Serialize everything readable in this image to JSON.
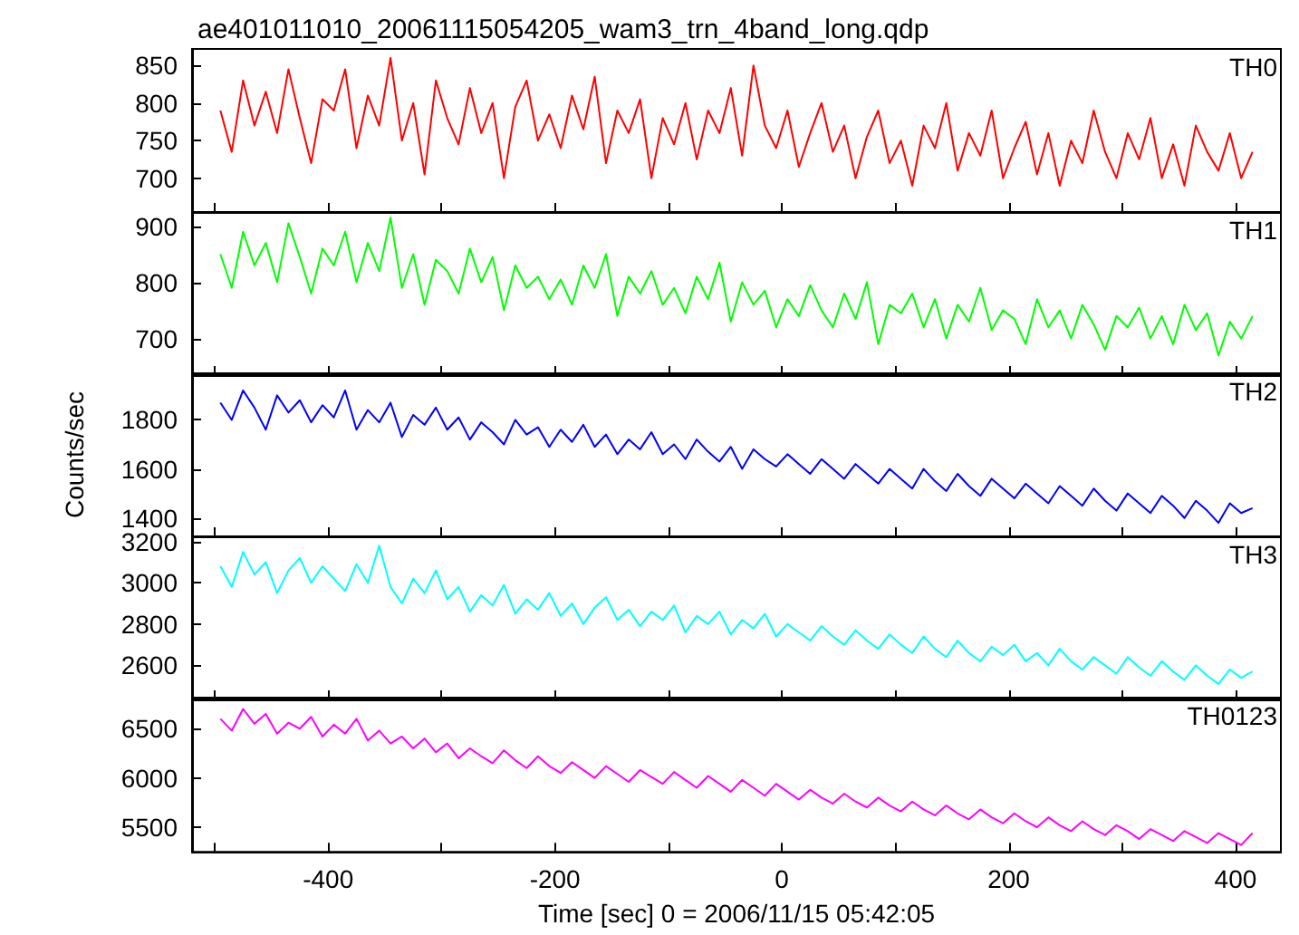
{
  "chart_data": [
    {
      "type": "line",
      "title": "ae401011010_20061115054205_wam3_trn_4band_long.qdp",
      "tick_labels": "y",
      "x": [
        -495,
        -485,
        -475,
        -465,
        -455,
        -445,
        -435,
        -425,
        -415,
        -405,
        -395,
        -385,
        -375,
        -365,
        -355,
        -345,
        -335,
        -325,
        -315,
        -305,
        -295,
        -285,
        -275,
        -265,
        -255,
        -245,
        -235,
        -225,
        -215,
        -205,
        -195,
        -185,
        -175,
        -165,
        -155,
        -145,
        -135,
        -125,
        -115,
        -105,
        -95,
        -85,
        -75,
        -65,
        -55,
        -45,
        -35,
        -25,
        -15,
        -5,
        5,
        15,
        25,
        35,
        45,
        55,
        65,
        75,
        85,
        95,
        105,
        115,
        125,
        135,
        145,
        155,
        165,
        175,
        185,
        195,
        205,
        215,
        225,
        235,
        245,
        255,
        265,
        275,
        285,
        295,
        305,
        315,
        325,
        335,
        345,
        355,
        365,
        375,
        385,
        395,
        405,
        415
      ],
      "series": [
        {
          "name": "TH0",
          "color": "#ff0000",
          "values": [
            790,
            735,
            830,
            770,
            815,
            760,
            845,
            780,
            720,
            805,
            790,
            845,
            740,
            810,
            770,
            860,
            750,
            800,
            705,
            830,
            780,
            745,
            820,
            760,
            800,
            700,
            795,
            830,
            750,
            785,
            740,
            810,
            765,
            835,
            720,
            790,
            760,
            805,
            700,
            780,
            745,
            800,
            725,
            790,
            760,
            820,
            730,
            850,
            770,
            740,
            790,
            715,
            760,
            800,
            735,
            770,
            700,
            755,
            790,
            720,
            750,
            690,
            770,
            740,
            800,
            710,
            760,
            730,
            790,
            700,
            740,
            775,
            705,
            760,
            690,
            750,
            720,
            790,
            735,
            700,
            760,
            725,
            780,
            700,
            745,
            690,
            770,
            735,
            710,
            760,
            700,
            735
          ]
        }
      ],
      "xlim": [
        -520,
        440
      ],
      "xticks": [
        {
          "value": -500,
          "label": null
        },
        -400,
        {
          "value": -300,
          "label": null
        },
        -200,
        {
          "value": -100,
          "label": null
        },
        0,
        {
          "value": 100,
          "label": null
        },
        200,
        {
          "value": 300,
          "label": null
        },
        400
      ],
      "ylim": [
        655,
        872
      ],
      "yticks": [
        700,
        750,
        800,
        850
      ]
    },
    {
      "type": "line",
      "tick_labels": "y",
      "x": [
        -495,
        -485,
        -475,
        -465,
        -455,
        -445,
        -435,
        -425,
        -415,
        -405,
        -395,
        -385,
        -375,
        -365,
        -355,
        -345,
        -335,
        -325,
        -315,
        -305,
        -295,
        -285,
        -275,
        -265,
        -255,
        -245,
        -235,
        -225,
        -215,
        -205,
        -195,
        -185,
        -175,
        -165,
        -155,
        -145,
        -135,
        -125,
        -115,
        -105,
        -95,
        -85,
        -75,
        -65,
        -55,
        -45,
        -35,
        -25,
        -15,
        -5,
        5,
        15,
        25,
        35,
        45,
        55,
        65,
        75,
        85,
        95,
        105,
        115,
        125,
        135,
        145,
        155,
        165,
        175,
        185,
        195,
        205,
        215,
        225,
        235,
        245,
        255,
        265,
        275,
        285,
        295,
        305,
        315,
        325,
        335,
        345,
        355,
        365,
        375,
        385,
        395,
        405,
        415
      ],
      "series": [
        {
          "name": "TH1",
          "color": "#00ff00",
          "values": [
            850,
            790,
            890,
            830,
            870,
            800,
            905,
            845,
            780,
            860,
            830,
            890,
            800,
            870,
            820,
            915,
            790,
            850,
            760,
            840,
            820,
            780,
            860,
            800,
            845,
            750,
            830,
            790,
            810,
            770,
            805,
            760,
            830,
            790,
            850,
            740,
            810,
            780,
            820,
            760,
            790,
            745,
            810,
            770,
            835,
            730,
            800,
            760,
            785,
            720,
            770,
            740,
            795,
            750,
            720,
            780,
            735,
            800,
            690,
            760,
            745,
            780,
            720,
            770,
            700,
            760,
            730,
            790,
            715,
            750,
            735,
            690,
            770,
            720,
            750,
            700,
            760,
            725,
            680,
            740,
            720,
            755,
            700,
            740,
            690,
            760,
            715,
            745,
            670,
            730,
            700,
            740
          ]
        }
      ],
      "xlim": [
        -520,
        440
      ],
      "xticks": [
        {
          "value": -500,
          "label": null
        },
        -400,
        {
          "value": -300,
          "label": null
        },
        -200,
        {
          "value": -100,
          "label": null
        },
        0,
        {
          "value": 100,
          "label": null
        },
        200,
        {
          "value": 300,
          "label": null
        },
        400
      ],
      "ylim": [
        635,
        925
      ],
      "yticks": [
        700,
        800,
        900
      ]
    },
    {
      "type": "line",
      "tick_labels": "y",
      "ylabel": "Counts/sec",
      "x": [
        -495,
        -485,
        -475,
        -465,
        -455,
        -445,
        -435,
        -425,
        -415,
        -405,
        -395,
        -385,
        -375,
        -365,
        -355,
        -345,
        -335,
        -325,
        -315,
        -305,
        -295,
        -285,
        -275,
        -265,
        -255,
        -245,
        -235,
        -225,
        -215,
        -205,
        -195,
        -185,
        -175,
        -165,
        -155,
        -145,
        -135,
        -125,
        -115,
        -105,
        -95,
        -85,
        -75,
        -65,
        -55,
        -45,
        -35,
        -25,
        -15,
        -5,
        5,
        15,
        25,
        35,
        45,
        55,
        65,
        75,
        85,
        95,
        105,
        115,
        125,
        135,
        145,
        155,
        165,
        175,
        185,
        195,
        205,
        215,
        225,
        235,
        245,
        255,
        265,
        275,
        285,
        295,
        305,
        315,
        325,
        335,
        345,
        355,
        365,
        375,
        385,
        395,
        405,
        415
      ],
      "series": [
        {
          "name": "TH2",
          "color": "#0000ff",
          "values": [
            1870,
            1800,
            1920,
            1850,
            1760,
            1900,
            1830,
            1880,
            1790,
            1860,
            1810,
            1920,
            1760,
            1840,
            1790,
            1870,
            1730,
            1820,
            1780,
            1850,
            1760,
            1810,
            1720,
            1790,
            1750,
            1700,
            1800,
            1740,
            1770,
            1690,
            1760,
            1710,
            1780,
            1690,
            1740,
            1660,
            1720,
            1680,
            1750,
            1660,
            1700,
            1640,
            1720,
            1670,
            1630,
            1690,
            1600,
            1680,
            1640,
            1610,
            1660,
            1620,
            1580,
            1640,
            1600,
            1560,
            1620,
            1580,
            1540,
            1600,
            1560,
            1520,
            1600,
            1550,
            1510,
            1580,
            1530,
            1490,
            1560,
            1520,
            1480,
            1540,
            1500,
            1460,
            1530,
            1490,
            1450,
            1520,
            1470,
            1430,
            1500,
            1460,
            1420,
            1490,
            1450,
            1400,
            1470,
            1430,
            1380,
            1460,
            1420,
            1440
          ]
        }
      ],
      "xlim": [
        -520,
        440
      ],
      "xticks": [
        {
          "value": -500,
          "label": null
        },
        -400,
        {
          "value": -300,
          "label": null
        },
        -200,
        {
          "value": -100,
          "label": null
        },
        0,
        {
          "value": 100,
          "label": null
        },
        200,
        {
          "value": 300,
          "label": null
        },
        400
      ],
      "ylim": [
        1325,
        1990
      ],
      "yticks": [
        1400,
        1600,
        1800
      ]
    },
    {
      "type": "line",
      "tick_labels": "y",
      "x": [
        -495,
        -485,
        -475,
        -465,
        -455,
        -445,
        -435,
        -425,
        -415,
        -405,
        -395,
        -385,
        -375,
        -365,
        -355,
        -345,
        -335,
        -325,
        -315,
        -305,
        -295,
        -285,
        -275,
        -265,
        -255,
        -245,
        -235,
        -225,
        -215,
        -205,
        -195,
        -185,
        -175,
        -165,
        -155,
        -145,
        -135,
        -125,
        -115,
        -105,
        -95,
        -85,
        -75,
        -65,
        -55,
        -45,
        -35,
        -25,
        -15,
        -5,
        5,
        15,
        25,
        35,
        45,
        55,
        65,
        75,
        85,
        95,
        105,
        115,
        125,
        135,
        145,
        155,
        165,
        175,
        185,
        195,
        205,
        215,
        225,
        235,
        245,
        255,
        265,
        275,
        285,
        295,
        305,
        315,
        325,
        335,
        345,
        355,
        365,
        375,
        385,
        395,
        405,
        415
      ],
      "series": [
        {
          "name": "TH3",
          "color": "#00ffff",
          "values": [
            3080,
            2980,
            3150,
            3040,
            3100,
            2950,
            3060,
            3120,
            3000,
            3080,
            3020,
            2960,
            3090,
            3000,
            3180,
            2980,
            2900,
            3020,
            2950,
            3060,
            2920,
            2980,
            2860,
            2940,
            2890,
            2990,
            2850,
            2920,
            2870,
            2950,
            2840,
            2900,
            2800,
            2880,
            2930,
            2820,
            2870,
            2790,
            2860,
            2820,
            2890,
            2760,
            2840,
            2800,
            2860,
            2750,
            2820,
            2780,
            2850,
            2740,
            2800,
            2760,
            2720,
            2790,
            2740,
            2700,
            2770,
            2720,
            2680,
            2750,
            2700,
            2660,
            2740,
            2680,
            2640,
            2720,
            2660,
            2620,
            2690,
            2650,
            2700,
            2620,
            2660,
            2600,
            2680,
            2620,
            2580,
            2640,
            2600,
            2560,
            2640,
            2590,
            2550,
            2620,
            2570,
            2530,
            2600,
            2550,
            2510,
            2580,
            2540,
            2570
          ]
        }
      ],
      "xlim": [
        -520,
        440
      ],
      "xticks": [
        {
          "value": -500,
          "label": null
        },
        -400,
        {
          "value": -300,
          "label": null
        },
        -200,
        {
          "value": -100,
          "label": null
        },
        0,
        {
          "value": 100,
          "label": null
        },
        200,
        {
          "value": 300,
          "label": null
        },
        400
      ],
      "ylim": [
        2435,
        3225
      ],
      "yticks": [
        2600,
        2800,
        3000,
        3200
      ]
    },
    {
      "type": "line",
      "xlabel": "Time [sec] 0 = 2006/11/15 05:42:05",
      "x": [
        -495,
        -485,
        -475,
        -465,
        -455,
        -445,
        -435,
        -425,
        -415,
        -405,
        -395,
        -385,
        -375,
        -365,
        -355,
        -345,
        -335,
        -325,
        -315,
        -305,
        -295,
        -285,
        -275,
        -265,
        -255,
        -245,
        -235,
        -225,
        -215,
        -205,
        -195,
        -185,
        -175,
        -165,
        -155,
        -145,
        -135,
        -125,
        -115,
        -105,
        -95,
        -85,
        -75,
        -65,
        -55,
        -45,
        -35,
        -25,
        -15,
        -5,
        5,
        15,
        25,
        35,
        45,
        55,
        65,
        75,
        85,
        95,
        105,
        115,
        125,
        135,
        145,
        155,
        165,
        175,
        185,
        195,
        205,
        215,
        225,
        235,
        245,
        255,
        265,
        275,
        285,
        295,
        305,
        315,
        325,
        335,
        345,
        355,
        365,
        375,
        385,
        395,
        405,
        415
      ],
      "series": [
        {
          "name": "TH0123",
          "color": "#ff00ff",
          "values": [
            6600,
            6480,
            6700,
            6550,
            6650,
            6450,
            6560,
            6500,
            6620,
            6420,
            6540,
            6450,
            6600,
            6380,
            6480,
            6350,
            6420,
            6300,
            6400,
            6260,
            6350,
            6200,
            6300,
            6220,
            6150,
            6280,
            6180,
            6100,
            6220,
            6120,
            6050,
            6160,
            6080,
            6000,
            6120,
            6040,
            5960,
            6080,
            6010,
            5940,
            6060,
            5980,
            5900,
            6020,
            5940,
            5860,
            5980,
            5900,
            5820,
            5940,
            5860,
            5780,
            5880,
            5800,
            5740,
            5840,
            5760,
            5700,
            5800,
            5720,
            5660,
            5760,
            5680,
            5620,
            5720,
            5640,
            5580,
            5680,
            5600,
            5540,
            5640,
            5560,
            5500,
            5600,
            5520,
            5460,
            5560,
            5480,
            5420,
            5520,
            5460,
            5380,
            5480,
            5420,
            5360,
            5460,
            5400,
            5340,
            5440,
            5380,
            5320,
            5440
          ]
        }
      ],
      "xlim": [
        -520,
        440
      ],
      "xticks": [
        {
          "value": -500,
          "label": null
        },
        -400,
        {
          "value": -300,
          "label": null
        },
        -200,
        {
          "value": -100,
          "label": null
        },
        0,
        {
          "value": 100,
          "label": null
        },
        200,
        {
          "value": 300,
          "label": null
        },
        400
      ],
      "ylim": [
        5250,
        6815
      ],
      "yticks": [
        5500,
        6000,
        6500
      ]
    }
  ]
}
